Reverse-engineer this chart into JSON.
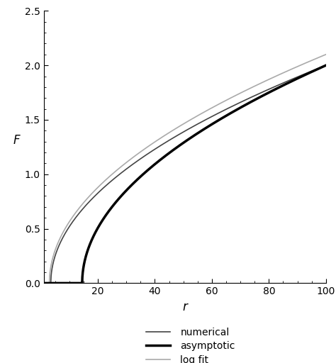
{
  "xlim": [
    1,
    100
  ],
  "ylim": [
    0,
    2.5
  ],
  "xticks": [
    20,
    40,
    60,
    80,
    100
  ],
  "yticks": [
    0,
    0.5,
    1.0,
    1.5,
    2.0,
    2.5
  ],
  "xlabel": "r",
  "ylabel": "F",
  "legend_labels": [
    "numerical",
    "asymptotic",
    "log fit"
  ],
  "legend_line_colors": [
    "#444444",
    "#000000",
    "#aaaaaa"
  ],
  "legend_linewidths": [
    1.2,
    2.5,
    1.2
  ],
  "numerical_color": "#444444",
  "asymptotic_color": "#000000",
  "logfit_color": "#aaaaaa",
  "numerical_lw": 1.2,
  "asymptotic_lw": 2.5,
  "logfit_lw": 1.2,
  "background_color": "#ffffff",
  "r_num_start": 3.5,
  "a_num": 0.765,
  "r_asym_start": 14.5,
  "a_asym": 0.54,
  "r_logfit_start": 3.0,
  "a_logfit": 0.74
}
